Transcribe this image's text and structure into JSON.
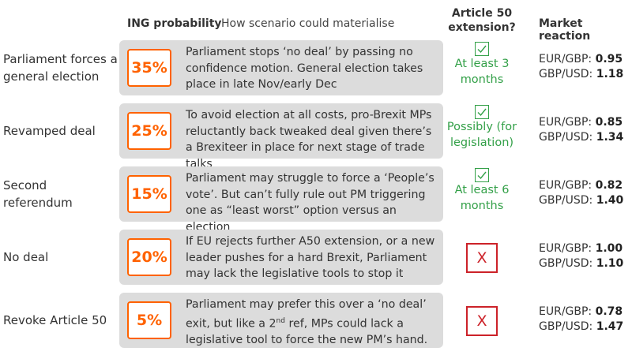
{
  "headers": {
    "probability": "ING probability",
    "how": "How scenario could materialise",
    "article50_line1": "Article 50",
    "article50_line2": "extension?",
    "market": "Market reaction"
  },
  "rows": [
    {
      "scenario": "Parliament forces a general election",
      "probability": "35%",
      "description": "Parliament stops ‘no deal’ by passing no confidence motion. General election takes place in late Nov/early Dec",
      "extension_icon": "check-icon",
      "extension_text": "At least 3 months",
      "eurgbp_label": "EUR/GBP:",
      "eurgbp": "0.95",
      "gbpusd_label": "GBP/USD:",
      "gbpusd": "1.18"
    },
    {
      "scenario": "Revamped deal",
      "probability": "25%",
      "description": "To avoid election at all costs, pro-Brexit MPs reluctantly back tweaked deal given there’s a Brexiteer in place for next stage of trade talks",
      "extension_icon": "check-icon",
      "extension_text": "Possibly (for legislation)",
      "eurgbp_label": "EUR/GBP:",
      "eurgbp": "0.85",
      "gbpusd_label": "GBP/USD:",
      "gbpusd": "1.34"
    },
    {
      "scenario": "Second referendum",
      "probability": "15%",
      "description": "Parliament may struggle to force a ‘People’s vote’. But can’t fully rule out PM triggering one as “least worst” option versus an election",
      "extension_icon": "check-icon",
      "extension_text": "At least 6 months",
      "eurgbp_label": "EUR/GBP:",
      "eurgbp": "0.82",
      "gbpusd_label": "GBP/USD:",
      "gbpusd": "1.40"
    },
    {
      "scenario": "No deal",
      "probability": "20%",
      "description": "If EU rejects further A50 extension, or a new leader pushes for a hard Brexit, Parliament may lack the legislative tools to stop it",
      "extension_icon": "cross-icon",
      "extension_mark": "X",
      "eurgbp_label": "EUR/GBP:",
      "eurgbp": "1.00",
      "gbpusd_label": "GBP/USD:",
      "gbpusd": "1.10"
    },
    {
      "scenario": "Revoke Article 50",
      "probability": "5%",
      "description_a": "Parliament may prefer this over a ‘no deal’ exit, but like a 2",
      "description_sup": "nd",
      "description_b": " ref, MPs could lack a legislative tool to force the new PM’s hand.",
      "extension_icon": "cross-icon",
      "extension_mark": "X",
      "eurgbp_label": "EUR/GBP:",
      "eurgbp": "0.78",
      "gbpusd_label": "GBP/USD:",
      "gbpusd": "1.47"
    }
  ],
  "colors": {
    "accent_orange": "#ff6200",
    "check_green": "#33a048",
    "cross_red": "#cc2229",
    "card_grey": "#dcdcdc"
  }
}
